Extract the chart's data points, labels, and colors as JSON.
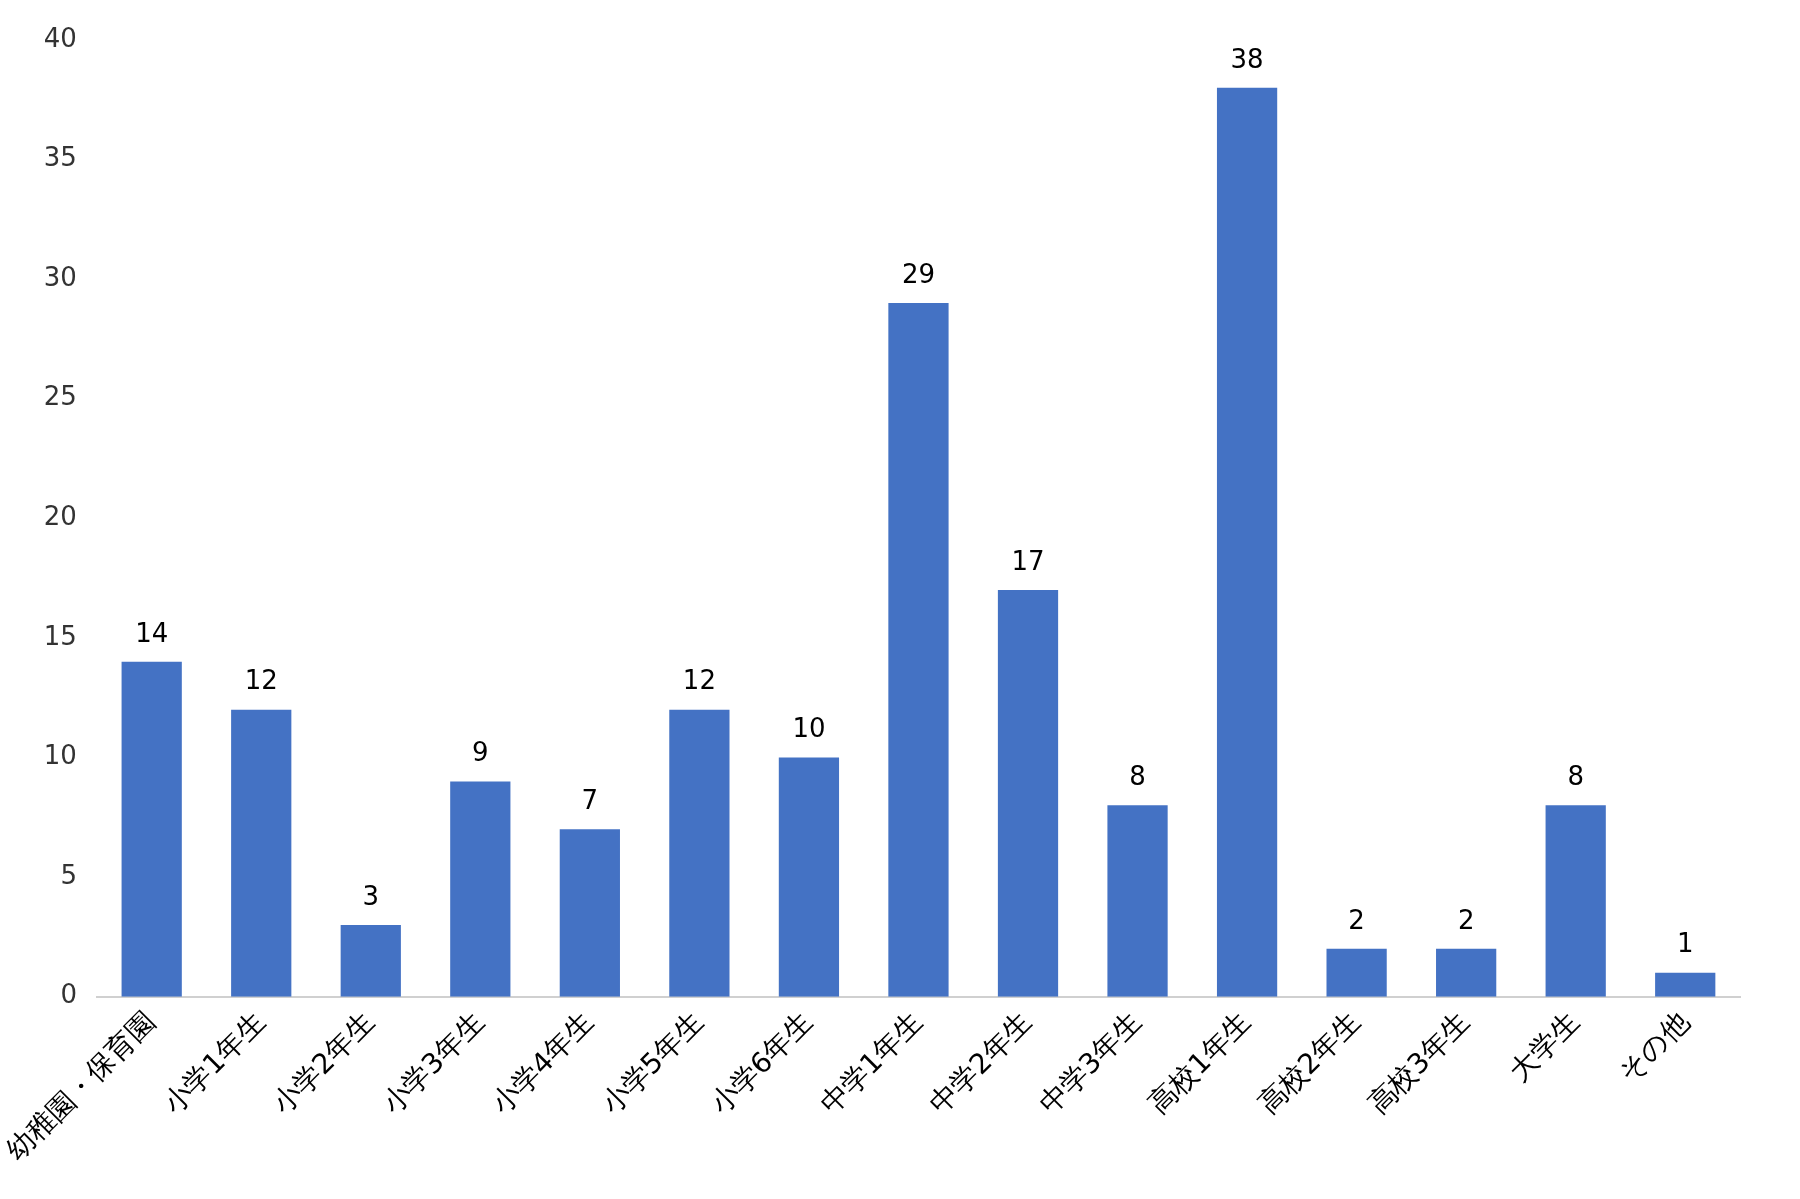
{
  "chart_data": {
    "type": "bar",
    "categories": [
      "幼稚園・保育園",
      "小学1年生",
      "小学2年生",
      "小学3年生",
      "小学4年生",
      "小学5年生",
      "小学6年生",
      "中学1年生",
      "中学2年生",
      "中学3年生",
      "高校1年生",
      "高校2年生",
      "高校3年生",
      "大学生",
      "その他"
    ],
    "values": [
      14,
      12,
      3,
      9,
      7,
      12,
      10,
      29,
      17,
      8,
      38,
      2,
      2,
      8,
      1
    ],
    "color": "#4472c4",
    "ylim": [
      0,
      40
    ],
    "yticks": [
      0,
      5,
      10,
      15,
      20,
      25,
      30,
      35,
      40
    ],
    "grid": false,
    "legend": false,
    "data_labels": true
  }
}
